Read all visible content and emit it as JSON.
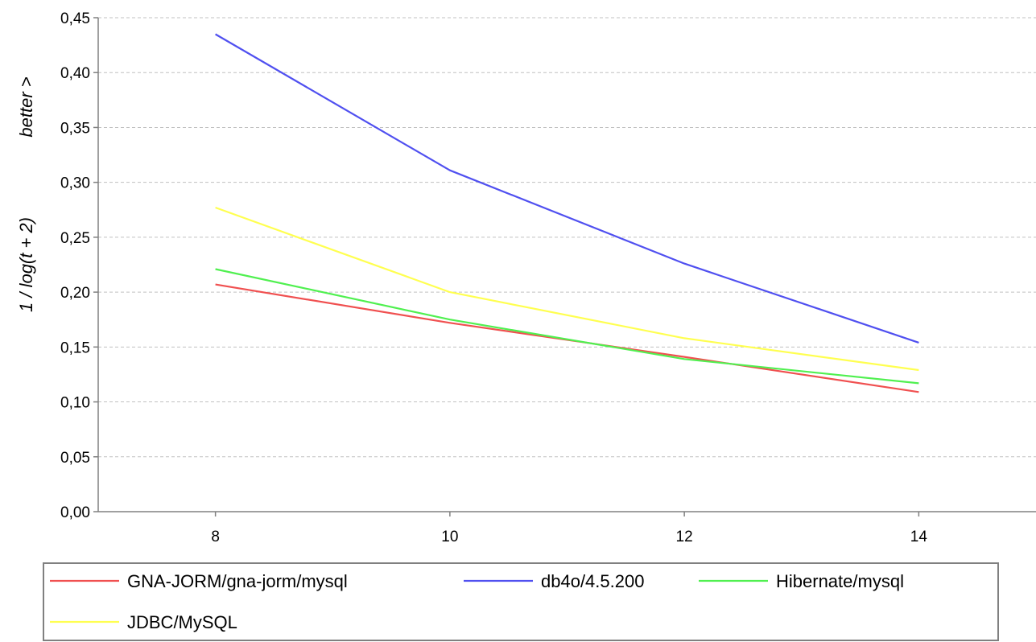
{
  "chart_data": {
    "type": "line",
    "title": "",
    "xlabel": "",
    "ylabel_lines": [
      "better >",
      "1  /  log(t + 2)"
    ],
    "x": [
      8,
      10,
      12,
      14
    ],
    "x_ticks": [
      "8",
      "10",
      "12",
      "14"
    ],
    "xlim": [
      7,
      15
    ],
    "ylim": [
      0,
      0.45
    ],
    "y_ticks": [
      "0,00",
      "0,05",
      "0,10",
      "0,15",
      "0,20",
      "0,25",
      "0,30",
      "0,35",
      "0,40",
      "0,45"
    ],
    "grid": true,
    "legend_position": "bottom",
    "series": [
      {
        "name": "GNA-JORM/gna-jorm/mysql",
        "color": "#f05050",
        "values": [
          0.207,
          0.172,
          0.141,
          0.109
        ]
      },
      {
        "name": "db4o/4.5.200",
        "color": "#5050f0",
        "values": [
          0.435,
          0.311,
          0.226,
          0.154
        ]
      },
      {
        "name": "Hibernate/mysql",
        "color": "#50f050",
        "values": [
          0.221,
          0.175,
          0.139,
          0.117
        ]
      },
      {
        "name": "JDBC/MySQL",
        "color": "#ffff50",
        "values": [
          0.277,
          0.2,
          0.158,
          0.129
        ]
      }
    ]
  }
}
